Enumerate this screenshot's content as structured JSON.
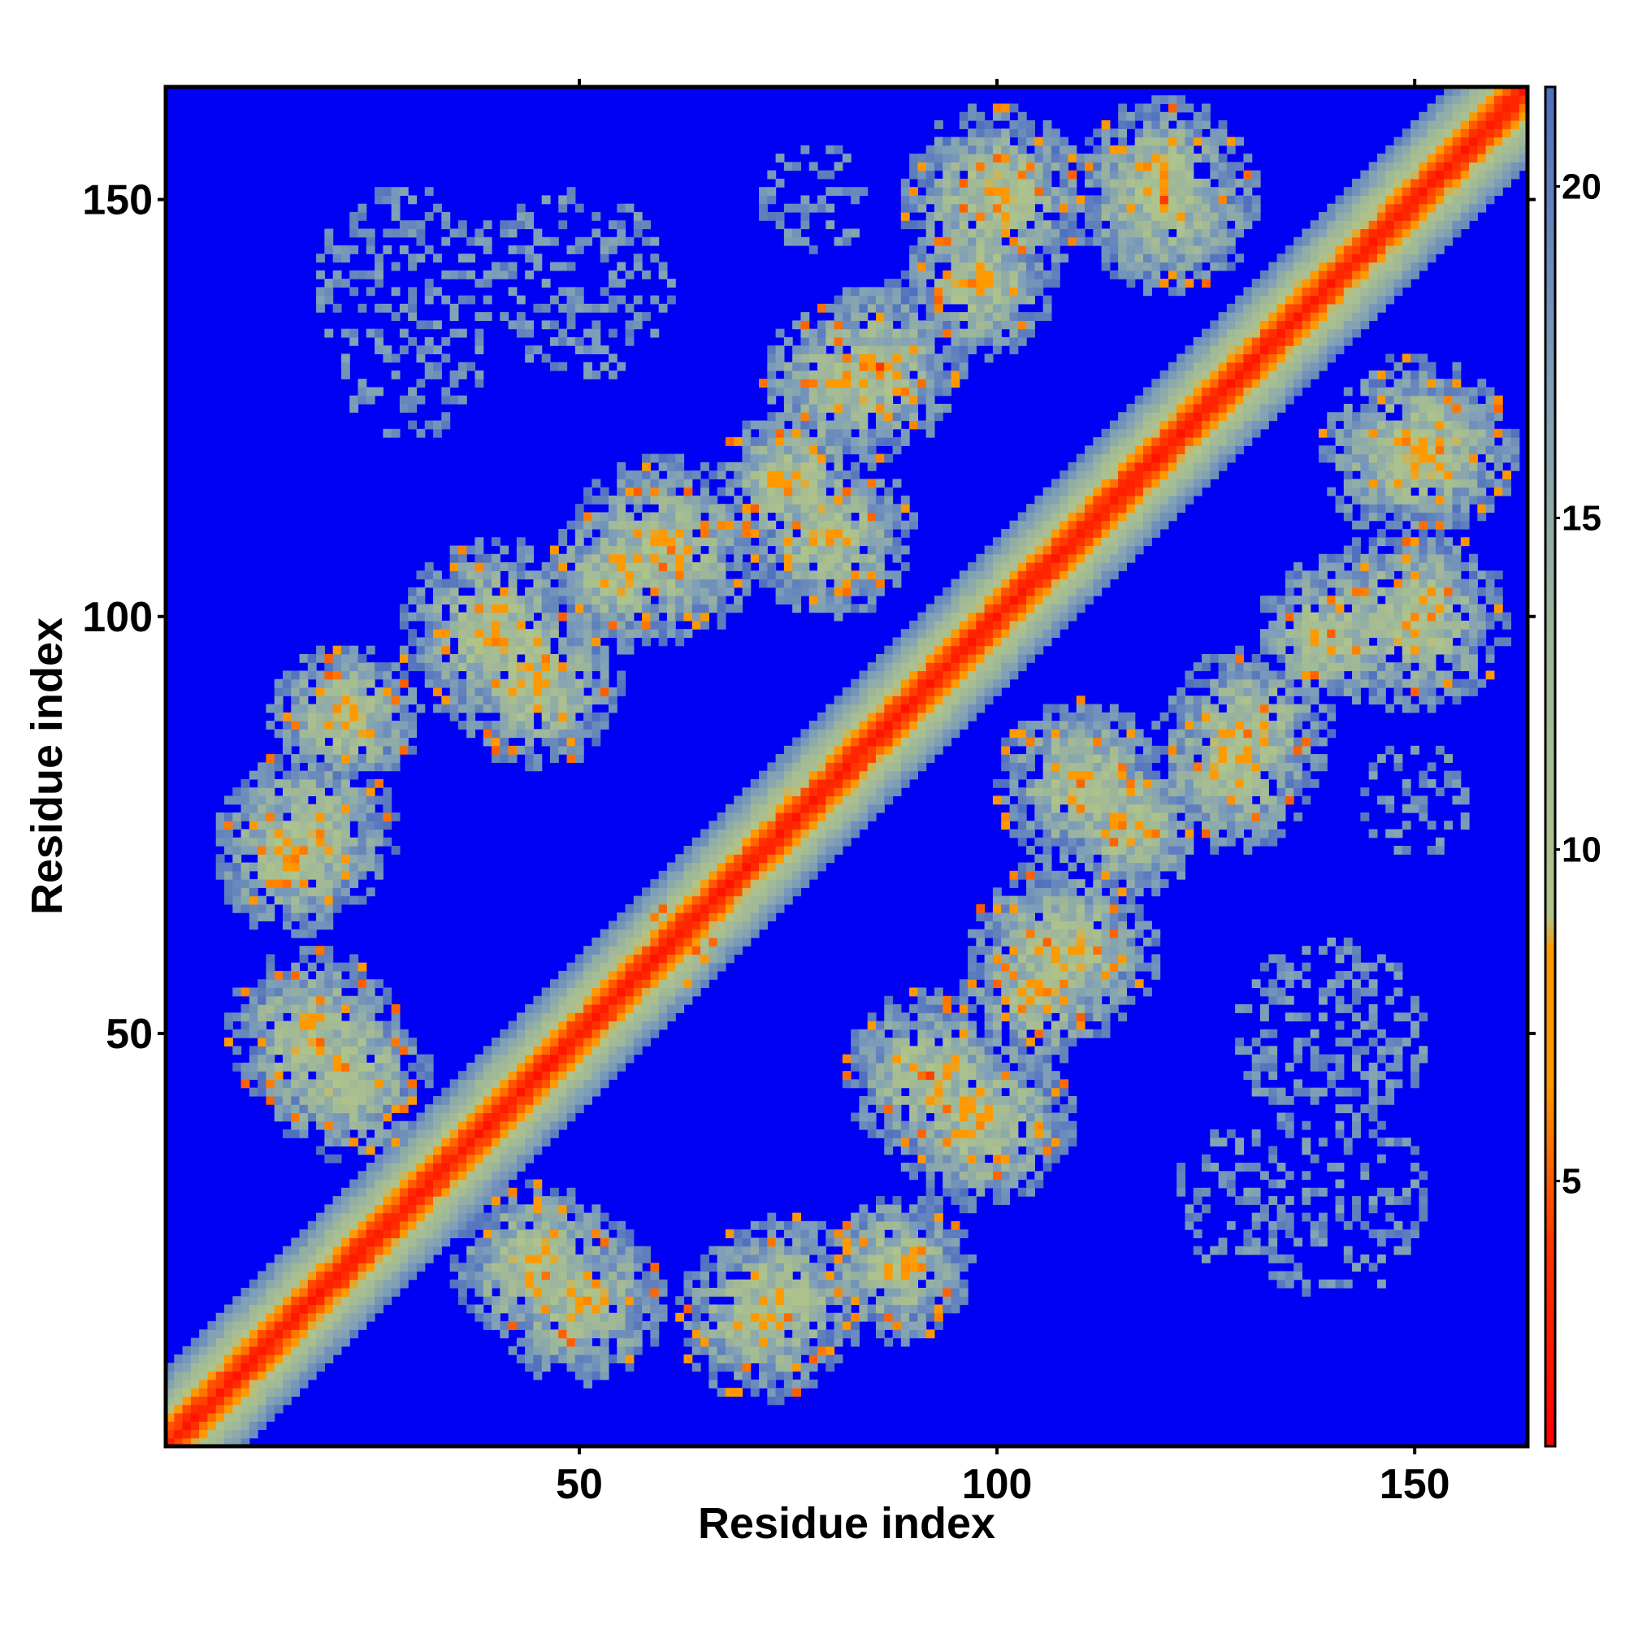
{
  "chart_data": {
    "type": "heatmap",
    "title": "",
    "xlabel": "Residue index",
    "ylabel": "Residue index",
    "n_residues": 163,
    "xlim": [
      0.5,
      163.5
    ],
    "ylim": [
      0.5,
      163.5
    ],
    "x_ticks": [
      50,
      100,
      150
    ],
    "y_ticks": [
      50,
      100,
      150
    ],
    "x_tick_labels": [
      "50",
      "100",
      "150"
    ],
    "y_tick_labels": [
      "50",
      "100",
      "150"
    ],
    "colorbar": {
      "range": [
        1,
        21.5
      ],
      "ticks": [
        5,
        10,
        15,
        20
      ],
      "tick_labels": [
        "5",
        "10",
        "15",
        "20"
      ],
      "cutoff": 21.5,
      "above_cutoff_color": "#0000f5",
      "color_stops": [
        {
          "value": 1.0,
          "color": "#ff0000"
        },
        {
          "value": 4.0,
          "color": "#ff3300"
        },
        {
          "value": 6.5,
          "color": "#ff9900"
        },
        {
          "value": 8.5,
          "color": "#ff9900"
        },
        {
          "value": 9.0,
          "color": "#b0c48a"
        },
        {
          "value": 13.0,
          "color": "#a0b898"
        },
        {
          "value": 17.0,
          "color": "#7f9fb8"
        },
        {
          "value": 21.5,
          "color": "#4f6fc0"
        }
      ]
    },
    "grid": false,
    "legend": "colorbar-right",
    "description_of_values": "Pairwise residue distance map (Å); main diagonal band, antiparallel off-diagonal contact bands",
    "structure": {
      "diagonal_core_width": 2.5,
      "diagonal_band_width": 9,
      "contact_blobs": [
        {
          "center": [
            16,
            72
          ],
          "radius": 9
        },
        {
          "center": [
            22,
            88
          ],
          "radius": 8
        },
        {
          "center": [
            40,
            98
          ],
          "radius": 10
        },
        {
          "center": [
            60,
            108
          ],
          "radius": 10
        },
        {
          "center": [
            18,
            50
          ],
          "radius": 9
        },
        {
          "center": [
            30,
            30
          ],
          "radius": 4
        },
        {
          "center": [
            45,
            22
          ],
          "radius": 9
        },
        {
          "center": [
            74,
            18
          ],
          "radius": 9
        },
        {
          "center": [
            92,
            45
          ],
          "radius": 9
        },
        {
          "center": [
            105,
            55
          ],
          "radius": 8
        },
        {
          "center": [
            110,
            80
          ],
          "radius": 9
        },
        {
          "center": [
            128,
            82
          ],
          "radius": 9
        },
        {
          "center": [
            140,
            98
          ],
          "radius": 8
        },
        {
          "center": [
            150,
            120
          ],
          "radius": 10
        },
        {
          "center": [
            100,
            150
          ],
          "radius": 10
        },
        {
          "center": [
            86,
            130
          ],
          "radius": 9
        },
        {
          "center": [
            120,
            152
          ],
          "radius": 9
        },
        {
          "center": [
            75,
            116
          ],
          "radius": 8
        },
        {
          "center": [
            60,
            62
          ],
          "radius": 4
        },
        {
          "center": [
            110,
            112
          ],
          "radius": 4
        }
      ],
      "sparse_patches": [
        {
          "center": [
            30,
            140
          ],
          "radius": 12
        },
        {
          "center": [
            50,
            140
          ],
          "radius": 12
        },
        {
          "center": [
            140,
            50
          ],
          "radius": 9
        },
        {
          "center": [
            130,
            30
          ],
          "radius": 9
        },
        {
          "center": [
            150,
            78
          ],
          "radius": 7
        }
      ]
    }
  }
}
